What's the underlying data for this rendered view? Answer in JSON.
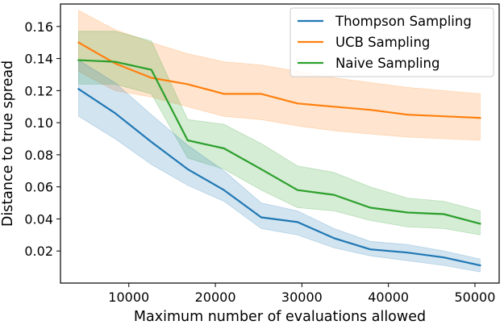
{
  "chart_data": {
    "type": "line",
    "title": "",
    "xlabel": "Maximum number of evaluations allowed",
    "ylabel": "Distance to true spread",
    "xlim": [
      2100,
      52800
    ],
    "ylim": [
      0.0,
      0.174
    ],
    "xticks": [
      10000,
      20000,
      30000,
      40000,
      50000
    ],
    "xtick_labels": [
      "10000",
      "20000",
      "30000",
      "40000",
      "50000"
    ],
    "yticks": [
      0.02,
      0.04,
      0.06,
      0.08,
      0.1,
      0.12,
      0.14,
      0.16
    ],
    "ytick_labels": [
      "0.02",
      "0.04",
      "0.06",
      "0.08",
      "0.10",
      "0.12",
      "0.14",
      "0.16"
    ],
    "grid": false,
    "legend_position": "top-right",
    "x": [
      4200,
      8400,
      12600,
      16800,
      21000,
      25300,
      29500,
      33700,
      37900,
      42200,
      46400,
      50600
    ],
    "series": [
      {
        "name": "UCB Sampling",
        "color": "#ff7f0e",
        "values": [
          0.15,
          0.137,
          0.128,
          0.124,
          0.118,
          0.118,
          0.112,
          0.11,
          0.108,
          0.105,
          0.104,
          0.103
        ],
        "upper": [
          0.17,
          0.158,
          0.15,
          0.143,
          0.138,
          0.136,
          0.132,
          0.128,
          0.125,
          0.122,
          0.12,
          0.118
        ],
        "lower": [
          0.132,
          0.12,
          0.116,
          0.11,
          0.104,
          0.102,
          0.098,
          0.095,
          0.093,
          0.091,
          0.09,
          0.089
        ]
      },
      {
        "name": "Naive Sampling",
        "color": "#2ca02c",
        "values": [
          0.139,
          0.138,
          0.133,
          0.089,
          0.084,
          0.071,
          0.058,
          0.055,
          0.047,
          0.044,
          0.043,
          0.037
        ],
        "upper": [
          0.157,
          0.157,
          0.151,
          0.102,
          0.099,
          0.087,
          0.073,
          0.069,
          0.06,
          0.053,
          0.051,
          0.045
        ],
        "lower": [
          0.124,
          0.124,
          0.118,
          0.078,
          0.071,
          0.058,
          0.047,
          0.045,
          0.039,
          0.035,
          0.034,
          0.03
        ]
      },
      {
        "name": "Thompson Sampling",
        "color": "#1f77b4",
        "values": [
          0.121,
          0.106,
          0.088,
          0.071,
          0.058,
          0.041,
          0.038,
          0.028,
          0.021,
          0.019,
          0.016,
          0.011
        ],
        "upper": [
          0.139,
          0.125,
          0.105,
          0.086,
          0.07,
          0.05,
          0.045,
          0.034,
          0.026,
          0.024,
          0.02,
          0.015
        ],
        "lower": [
          0.104,
          0.09,
          0.074,
          0.061,
          0.051,
          0.034,
          0.03,
          0.022,
          0.017,
          0.014,
          0.011,
          0.007
        ]
      }
    ],
    "legend_order": [
      "Thompson Sampling",
      "UCB Sampling",
      "Naive Sampling"
    ]
  }
}
